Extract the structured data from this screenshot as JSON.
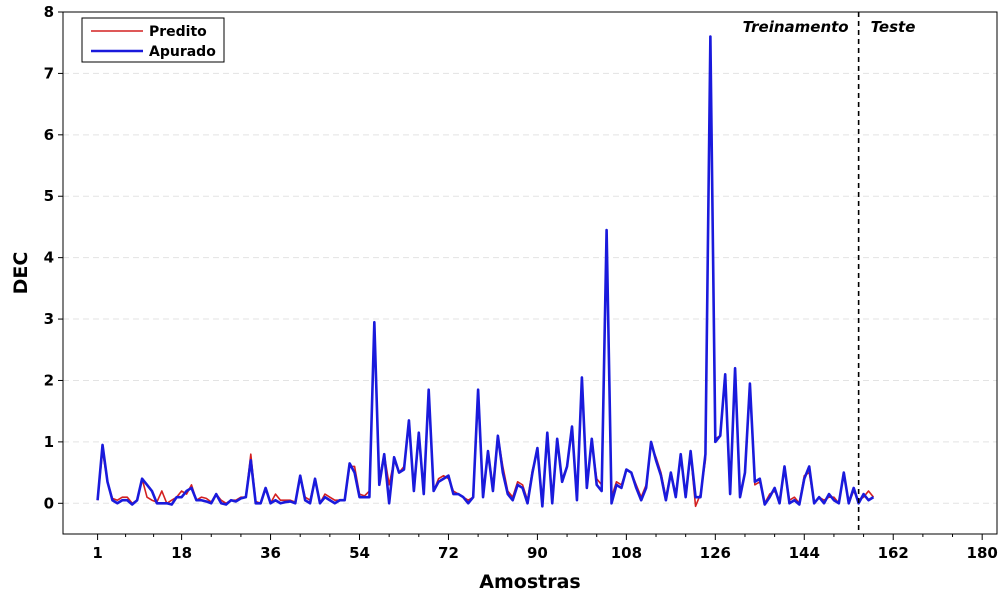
{
  "chart_data": {
    "type": "line",
    "xlabel": "Amostras",
    "ylabel": "DEC",
    "xlim": [
      -6,
      183
    ],
    "ylim": [
      -0.5,
      8
    ],
    "xticks": [
      1,
      18,
      36,
      54,
      72,
      90,
      108,
      126,
      144,
      162,
      180
    ],
    "yticks": [
      0,
      1,
      2,
      3,
      4,
      5,
      6,
      7,
      8
    ],
    "grid": true,
    "legend_position": "top-left",
    "split": {
      "x": 155,
      "left_label": "Treinamento",
      "right_label": "Teste"
    },
    "series": [
      {
        "name": "Predito",
        "color": "#d32020",
        "values": [
          0.05,
          0.85,
          0.35,
          0.08,
          0.05,
          0.1,
          0.1,
          0.0,
          0.05,
          0.4,
          0.1,
          0.05,
          0.02,
          0.2,
          0.0,
          0.05,
          0.1,
          0.2,
          0.15,
          0.3,
          0.05,
          0.1,
          0.08,
          0.02,
          0.15,
          0.05,
          0.0,
          0.05,
          0.05,
          0.1,
          0.1,
          0.8,
          0.03,
          0.0,
          0.25,
          0.0,
          0.15,
          0.05,
          0.05,
          0.05,
          0.02,
          0.45,
          0.1,
          0.05,
          0.4,
          0.0,
          0.15,
          0.1,
          0.05,
          0.05,
          0.05,
          0.6,
          0.6,
          0.15,
          0.12,
          0.2,
          2.9,
          0.4,
          0.8,
          0.3,
          0.7,
          0.5,
          0.6,
          1.3,
          0.2,
          1.1,
          0.2,
          1.8,
          0.2,
          0.4,
          0.45,
          0.4,
          0.2,
          0.15,
          0.1,
          0.05,
          0.1,
          1.8,
          0.2,
          0.8,
          0.3,
          1.1,
          0.6,
          0.2,
          0.1,
          0.35,
          0.3,
          0.05,
          0.55,
          0.85,
          0.0,
          1.1,
          0.1,
          1.0,
          0.4,
          0.6,
          1.2,
          0.1,
          2.0,
          0.3,
          1.0,
          0.4,
          0.3,
          4.4,
          0.1,
          0.35,
          0.3,
          0.55,
          0.5,
          0.3,
          0.1,
          0.3,
          0.95,
          0.75,
          0.5,
          0.1,
          0.5,
          0.15,
          0.75,
          0.15,
          0.8,
          -0.05,
          0.15,
          0.7,
          7.5,
          1.05,
          1.1,
          2.1,
          0.2,
          2.1,
          0.15,
          0.5,
          1.9,
          0.3,
          0.35,
          0.0,
          0.15,
          0.2,
          0.05,
          0.6,
          0.05,
          0.1,
          0.0,
          0.45,
          0.5,
          0.0,
          0.1,
          0.05,
          0.1,
          0.1,
          0.0,
          0.5,
          0.0,
          0.2,
          0.05,
          0.1,
          0.2,
          0.1
        ]
      },
      {
        "name": "Apurado",
        "color": "#1a1adc",
        "values": [
          0.05,
          0.95,
          0.35,
          0.05,
          0.0,
          0.05,
          0.05,
          -0.02,
          0.05,
          0.4,
          0.3,
          0.2,
          0.0,
          0.0,
          0.0,
          -0.02,
          0.1,
          0.1,
          0.2,
          0.25,
          0.05,
          0.05,
          0.03,
          0.0,
          0.15,
          0.0,
          -0.02,
          0.05,
          0.03,
          0.08,
          0.1,
          0.7,
          0.0,
          0.0,
          0.25,
          0.0,
          0.05,
          0.0,
          0.02,
          0.03,
          0.0,
          0.45,
          0.05,
          0.0,
          0.4,
          0.0,
          0.1,
          0.05,
          0.0,
          0.05,
          0.05,
          0.65,
          0.5,
          0.1,
          0.1,
          0.1,
          2.95,
          0.3,
          0.8,
          0.0,
          0.75,
          0.5,
          0.55,
          1.35,
          0.2,
          1.15,
          0.15,
          1.85,
          0.2,
          0.35,
          0.4,
          0.45,
          0.15,
          0.15,
          0.1,
          0.0,
          0.1,
          1.85,
          0.1,
          0.85,
          0.2,
          1.1,
          0.5,
          0.15,
          0.05,
          0.3,
          0.25,
          0.0,
          0.5,
          0.9,
          -0.05,
          1.15,
          0.0,
          1.05,
          0.35,
          0.6,
          1.25,
          0.05,
          2.05,
          0.25,
          1.05,
          0.3,
          0.2,
          4.45,
          0.0,
          0.3,
          0.25,
          0.55,
          0.5,
          0.25,
          0.05,
          0.25,
          1.0,
          0.7,
          0.45,
          0.05,
          0.5,
          0.1,
          0.8,
          0.1,
          0.85,
          0.1,
          0.1,
          0.8,
          7.6,
          1.0,
          1.1,
          2.1,
          0.15,
          2.2,
          0.1,
          0.5,
          1.95,
          0.35,
          0.4,
          -0.02,
          0.1,
          0.25,
          0.0,
          0.6,
          0.0,
          0.05,
          -0.02,
          0.4,
          0.6,
          0.0,
          0.1,
          0.0,
          0.15,
          0.05,
          0.0,
          0.5,
          0.0,
          0.25,
          0.0,
          0.15,
          0.05,
          0.1
        ]
      }
    ]
  }
}
